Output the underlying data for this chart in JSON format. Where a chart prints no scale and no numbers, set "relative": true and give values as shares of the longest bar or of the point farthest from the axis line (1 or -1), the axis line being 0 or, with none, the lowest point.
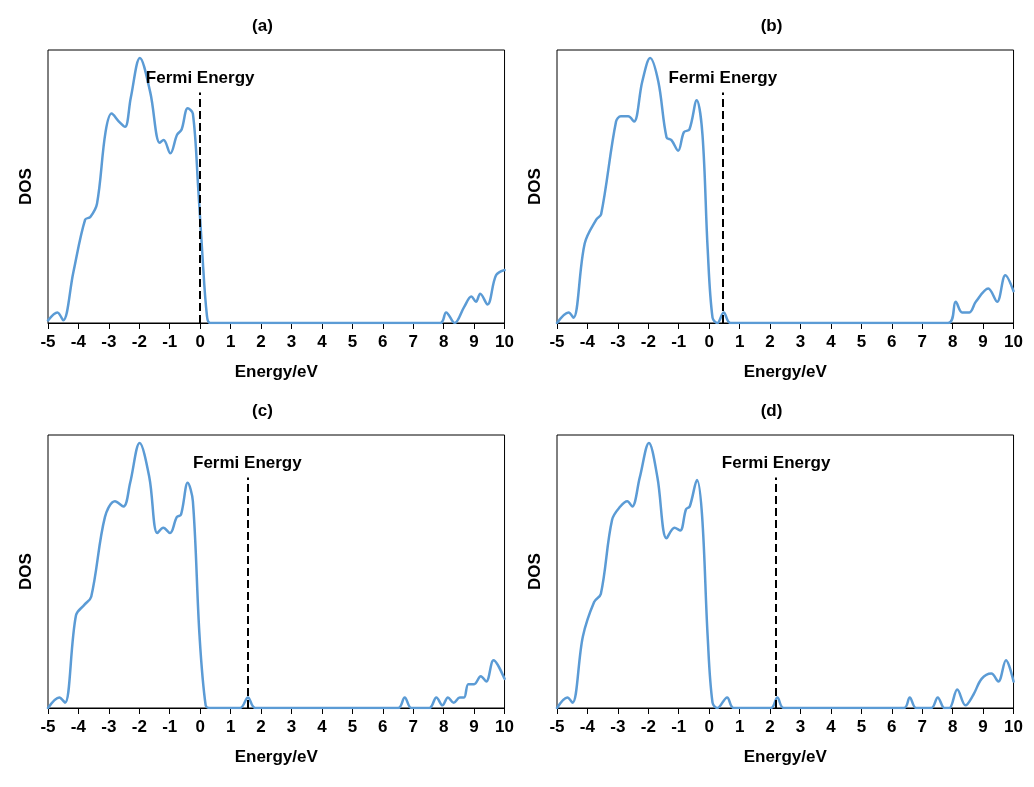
{
  "chart_data": [
    {
      "type": "line",
      "title": "(a)",
      "xlabel": "Energy/eV",
      "ylabel": "DOS",
      "relative": true,
      "color": "#5b9bd5",
      "marker": "none",
      "line_style": "solid",
      "grid": false,
      "xlim": [
        -5,
        10
      ],
      "xticks": [
        -5,
        -4,
        -3,
        -2,
        -1,
        0,
        1,
        2,
        3,
        4,
        5,
        6,
        7,
        8,
        9,
        10
      ],
      "x": [
        -5,
        -4.69,
        -4.5,
        -4.17,
        -3.78,
        -3.61,
        -3.39,
        -3.11,
        -2.91,
        -2.67,
        -2.47,
        -2.28,
        -1.98,
        -1.64,
        -1.33,
        -1.2,
        -0.98,
        -0.76,
        -0.61,
        -0.41,
        -0.24,
        -0.06,
        0.06,
        0.22,
        0.33,
        7.89,
        8.08,
        8.36,
        8.67,
        8.91,
        9.06,
        9.2,
        9.44,
        9.72,
        10
      ],
      "values": [
        0.01,
        0.04,
        0.01,
        0.19,
        0.39,
        0.4,
        0.45,
        0.72,
        0.79,
        0.76,
        0.74,
        0.85,
        1,
        0.87,
        0.68,
        0.69,
        0.64,
        0.71,
        0.73,
        0.81,
        0.79,
        0.5,
        0.28,
        0.03,
        0,
        0,
        0.04,
        0,
        0.06,
        0.1,
        0.08,
        0.11,
        0.07,
        0.18,
        0.2
      ],
      "ref_lines": [
        {
          "axis": "x",
          "value": 0,
          "label": "Fermi Energy",
          "color": "#000000",
          "line_style": "dashed"
        }
      ]
    },
    {
      "type": "line",
      "title": "(b)",
      "xlabel": "Energy/eV",
      "ylabel": "DOS",
      "relative": true,
      "color": "#5b9bd5",
      "marker": "none",
      "line_style": "solid",
      "grid": false,
      "xlim": [
        -5,
        10
      ],
      "xticks": [
        -5,
        -4,
        -3,
        -2,
        -1,
        0,
        1,
        2,
        3,
        4,
        5,
        6,
        7,
        8,
        9,
        10
      ],
      "x": [
        -5,
        -4.62,
        -4.46,
        -4.09,
        -3.71,
        -3.55,
        -3.06,
        -2.9,
        -2.66,
        -2.47,
        -2.2,
        -1.94,
        -1.67,
        -1.4,
        -1.24,
        -1.02,
        -0.83,
        -0.65,
        -0.41,
        -0.22,
        -0.05,
        0.11,
        0.27,
        0.48,
        0.7,
        7.85,
        8.1,
        8.31,
        8.55,
        8.76,
        9.17,
        9.46,
        9.73,
        10
      ],
      "values": [
        0,
        0.04,
        0.02,
        0.3,
        0.39,
        0.41,
        0.76,
        0.78,
        0.78,
        0.76,
        0.91,
        1,
        0.91,
        0.7,
        0.69,
        0.65,
        0.72,
        0.73,
        0.84,
        0.71,
        0.28,
        0.02,
        0,
        0.04,
        0,
        0,
        0.08,
        0.04,
        0.04,
        0.08,
        0.13,
        0.08,
        0.18,
        0.12
      ],
      "ref_lines": [
        {
          "axis": "x",
          "value": 0.45,
          "label": "Fermi Energy",
          "color": "#000000",
          "line_style": "dashed"
        }
      ]
    },
    {
      "type": "line",
      "title": "(c)",
      "xlabel": "Energy/eV",
      "ylabel": "DOS",
      "relative": true,
      "color": "#5b9bd5",
      "marker": "none",
      "line_style": "solid",
      "grid": false,
      "xlim": [
        -5,
        10
      ],
      "xticks": [
        -5,
        -4,
        -3,
        -2,
        -1,
        0,
        1,
        2,
        3,
        4,
        5,
        6,
        7,
        8,
        9,
        10
      ],
      "x": [
        -5,
        -4.63,
        -4.44,
        -4.08,
        -3.8,
        -3.58,
        -3.13,
        -2.8,
        -2.52,
        -2.3,
        -1.99,
        -1.67,
        -1.41,
        -1.21,
        -0.99,
        -0.77,
        -0.63,
        -0.41,
        -0.24,
        -0.02,
        0.18,
        0.31,
        1.31,
        1.57,
        1.81,
        6.5,
        6.72,
        6.94,
        7.53,
        7.76,
        7.96,
        8.14,
        8.33,
        8.53,
        8.67,
        8.81,
        9,
        9.22,
        9.4,
        9.64,
        10
      ],
      "values": [
        0,
        0.04,
        0.02,
        0.35,
        0.39,
        0.42,
        0.72,
        0.78,
        0.76,
        0.85,
        1,
        0.87,
        0.66,
        0.68,
        0.66,
        0.72,
        0.73,
        0.85,
        0.78,
        0.27,
        0.01,
        0,
        0,
        0.04,
        0,
        0,
        0.04,
        0,
        0,
        0.04,
        0.01,
        0.04,
        0.02,
        0.04,
        0.04,
        0.09,
        0.09,
        0.12,
        0.1,
        0.18,
        0.11
      ],
      "ref_lines": [
        {
          "axis": "x",
          "value": 1.55,
          "label": "Fermi Energy",
          "color": "#000000",
          "line_style": "dashed"
        }
      ]
    },
    {
      "type": "line",
      "title": "(d)",
      "xlabel": "Energy/eV",
      "ylabel": "DOS",
      "relative": true,
      "color": "#5b9bd5",
      "marker": "none",
      "line_style": "solid",
      "grid": false,
      "xlim": [
        -5,
        10
      ],
      "xticks": [
        -5,
        -4,
        -3,
        -2,
        -1,
        0,
        1,
        2,
        3,
        4,
        5,
        6,
        7,
        8,
        9,
        10
      ],
      "x": [
        -5,
        -4.66,
        -4.49,
        -4.15,
        -3.78,
        -3.56,
        -3.19,
        -2.92,
        -2.69,
        -2.53,
        -2.28,
        -1.98,
        -1.7,
        -1.4,
        -1.14,
        -0.95,
        -0.76,
        -0.64,
        -0.4,
        -0.23,
        -0.05,
        0.11,
        0.27,
        0.59,
        0.8,
        2.03,
        2.24,
        2.45,
        6.4,
        6.59,
        6.8,
        7.3,
        7.51,
        7.73,
        7.89,
        8.15,
        8.42,
        8.68,
        8.95,
        9.27,
        9.5,
        9.75,
        10
      ],
      "values": [
        0,
        0.04,
        0.02,
        0.27,
        0.4,
        0.43,
        0.71,
        0.76,
        0.78,
        0.76,
        0.87,
        1,
        0.87,
        0.64,
        0.68,
        0.67,
        0.75,
        0.76,
        0.86,
        0.72,
        0.27,
        0.02,
        0,
        0.04,
        0,
        0,
        0.04,
        0,
        0,
        0.04,
        0,
        0,
        0.04,
        0,
        0,
        0.07,
        0.01,
        0.05,
        0.11,
        0.13,
        0.1,
        0.18,
        0.1
      ],
      "ref_lines": [
        {
          "axis": "x",
          "value": 2.2,
          "label": "Fermi Energy",
          "color": "#000000",
          "line_style": "dashed"
        }
      ]
    }
  ]
}
